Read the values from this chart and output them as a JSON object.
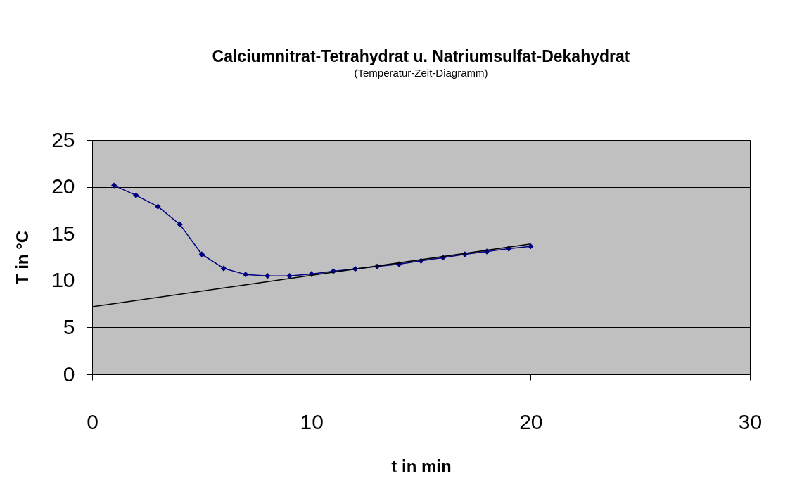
{
  "chart_data": {
    "type": "line",
    "title": "Calciumnitrat-Tetrahydrat u. Natriumsulfat-Dekahydrat",
    "subtitle": "(Temperatur-Zeit-Diagramm)",
    "xlabel": "t in min",
    "ylabel": "T in °C",
    "xlim": [
      0,
      30
    ],
    "xticks": [
      0,
      10,
      20,
      30
    ],
    "ylim": [
      0,
      25
    ],
    "yticks": [
      0,
      5,
      10,
      15,
      20,
      25
    ],
    "grid": "y",
    "series": [
      {
        "color": "#000080",
        "marker": "diamond",
        "x": [
          1,
          2,
          3,
          4,
          5,
          6,
          7,
          8,
          9,
          10,
          11,
          12,
          13,
          14,
          15,
          16,
          17,
          18,
          19,
          20
        ],
        "values": [
          20.15,
          19.1,
          17.9,
          16.0,
          12.8,
          11.3,
          10.65,
          10.5,
          10.5,
          10.7,
          11.0,
          11.25,
          11.5,
          11.75,
          12.1,
          12.45,
          12.8,
          13.1,
          13.4,
          13.65
        ]
      },
      {
        "color": "#000000",
        "marker": "none",
        "x": [
          0,
          20
        ],
        "values": [
          7.2,
          13.9
        ]
      }
    ]
  }
}
